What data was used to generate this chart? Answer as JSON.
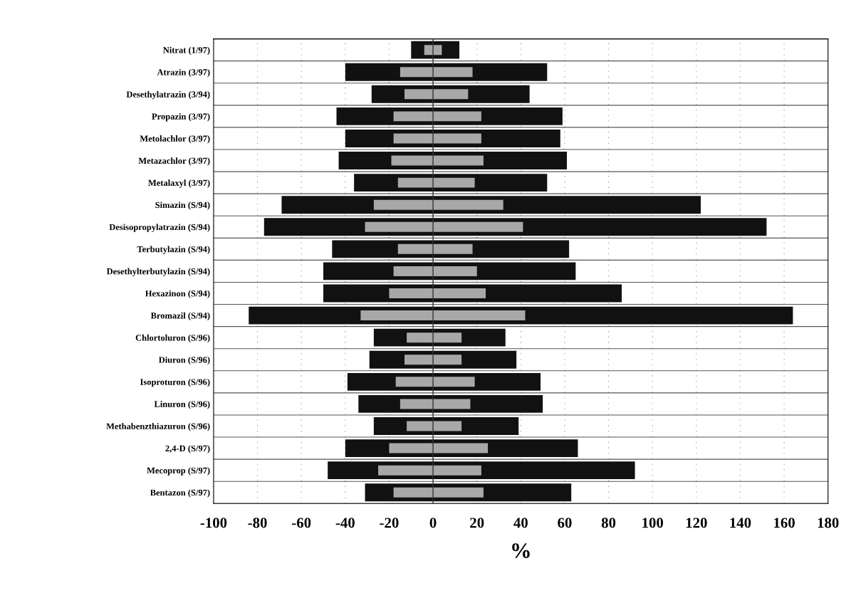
{
  "chart_data": {
    "type": "bar",
    "orientation": "horizontal",
    "xlabel": "%",
    "categories": [
      "Nitrat (1/97)",
      "Atrazin (3/97)",
      "Desethylatrazin (3/94)",
      "Propazin (3/97)",
      "Metolachlor (3/97)",
      "Metazachlor (3/97)",
      "Metalaxyl (3/97)",
      "Simazin (S/94)",
      "Desisopropylatrazin (S/94)",
      "Terbutylazin (S/94)",
      "Desethylterbutylazin (S/94)",
      "Hexazinon (S/94)",
      "Bromazil (S/94)",
      "Chlortoluron (S/96)",
      "Diuron (S/96)",
      "Isoproturon (S/96)",
      "Linuron (S/96)",
      "Methabenzthiazuron (S/96)",
      "2,4-D (S/97)",
      "Mecoprop (S/97)",
      "Bentazon (S/97)"
    ],
    "series": [
      {
        "color": "#111111",
        "base": [
          -10,
          -40,
          -28,
          -44,
          -40,
          -43,
          -36,
          -69,
          -77,
          -46,
          -50,
          -50,
          -84,
          -27,
          -29,
          -39,
          -34,
          -27,
          -40,
          -48,
          -31
        ],
        "values": [
          22,
          92,
          72,
          103,
          98,
          104,
          88,
          191,
          229,
          108,
          115,
          136,
          248,
          60,
          67,
          88,
          84,
          66,
          106,
          140,
          94
        ]
      },
      {
        "color": "#a8a8a8",
        "base": [
          -4,
          -15,
          -13,
          -18,
          -18,
          -19,
          -16,
          -27,
          -31,
          -16,
          -18,
          -20,
          -33,
          -12,
          -13,
          -17,
          -15,
          -12,
          -20,
          -25,
          -18
        ],
        "values": [
          8,
          33,
          29,
          40,
          40,
          42,
          35,
          59,
          72,
          34,
          38,
          44,
          75,
          25,
          26,
          36,
          32,
          25,
          45,
          47,
          41
        ]
      }
    ],
    "xlim": [
      -100,
      180
    ],
    "xticks": [
      -100,
      -80,
      -60,
      -40,
      -20,
      0,
      20,
      40,
      60,
      80,
      100,
      120,
      140,
      160,
      180
    ],
    "ref_lines": [
      {
        "axis": "x",
        "value": 0,
        "color": "#333333"
      }
    ],
    "grid": true
  }
}
